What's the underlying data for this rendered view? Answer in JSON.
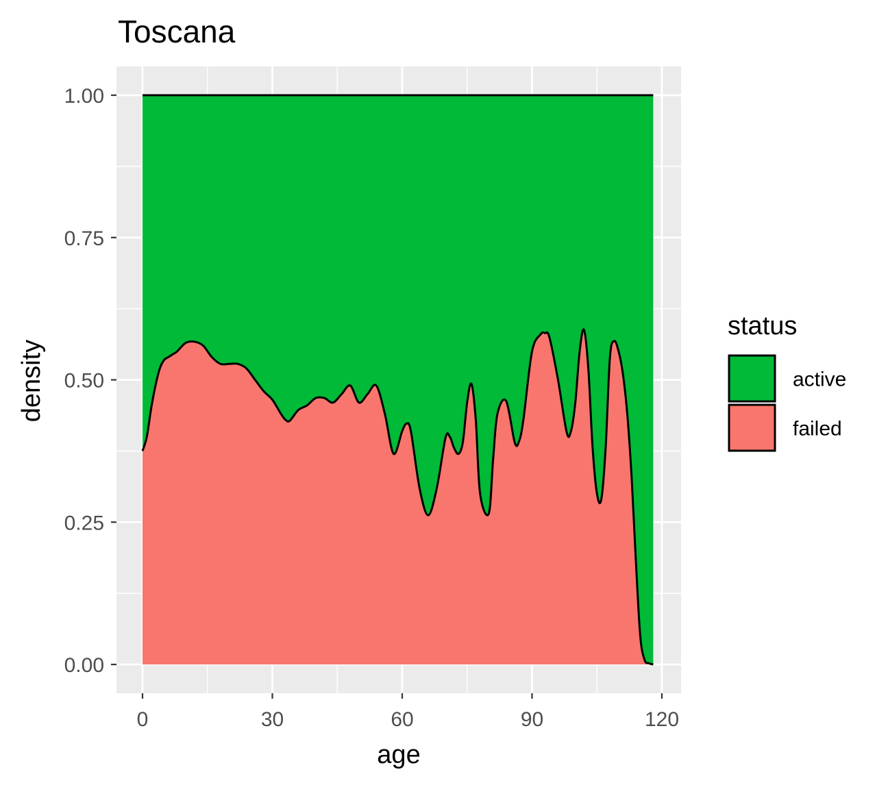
{
  "chart_data": {
    "type": "area",
    "title": "Toscana",
    "xlabel": "age",
    "ylabel": "density",
    "xlim": [
      -5,
      124
    ],
    "ylim": [
      -0.1,
      1.05
    ],
    "x_ticks": [
      0,
      30,
      60,
      90,
      120
    ],
    "x_tick_labels": [
      "0",
      "30",
      "60",
      "90",
      "120"
    ],
    "y_ticks": [
      0,
      0.25,
      0.5,
      0.75,
      1.0
    ],
    "y_tick_labels": [
      "0.00",
      "0.25",
      "0.50",
      "0.75",
      "1.00"
    ],
    "grid": true,
    "stacked": "fill",
    "legend": {
      "title": "status",
      "position": "right",
      "entries": [
        {
          "label": "active",
          "color": "#00BA38"
        },
        {
          "label": "failed",
          "color": "#F8766D"
        }
      ]
    },
    "series": [
      {
        "name": "failed",
        "color": "#F8766D",
        "x": [
          0,
          1,
          2,
          3,
          4,
          5,
          6,
          7,
          8,
          10,
          12,
          14,
          16,
          18,
          20,
          22,
          24,
          26,
          28,
          30,
          32,
          33,
          34,
          36,
          38,
          40,
          42,
          44,
          46,
          48,
          50,
          52,
          54,
          56,
          58,
          60,
          61,
          62,
          64,
          66,
          68,
          70,
          71,
          72,
          73,
          74,
          75,
          76,
          77,
          78,
          80,
          81,
          82,
          84,
          86,
          87,
          88,
          90,
          92,
          93,
          94,
          96,
          98,
          99,
          100,
          101,
          102,
          103,
          104,
          105,
          106,
          107,
          108,
          109,
          110,
          111,
          112,
          113,
          114,
          115,
          116,
          117,
          118
        ],
        "values": [
          0.375,
          0.4,
          0.45,
          0.49,
          0.52,
          0.535,
          0.54,
          0.545,
          0.55,
          0.565,
          0.567,
          0.56,
          0.54,
          0.528,
          0.528,
          0.528,
          0.52,
          0.5,
          0.48,
          0.465,
          0.44,
          0.43,
          0.428,
          0.447,
          0.455,
          0.468,
          0.468,
          0.46,
          0.475,
          0.49,
          0.46,
          0.475,
          0.49,
          0.44,
          0.37,
          0.41,
          0.423,
          0.41,
          0.31,
          0.262,
          0.31,
          0.398,
          0.4,
          0.38,
          0.37,
          0.39,
          0.46,
          0.493,
          0.43,
          0.3,
          0.265,
          0.36,
          0.44,
          0.463,
          0.39,
          0.392,
          0.43,
          0.55,
          0.58,
          0.582,
          0.575,
          0.5,
          0.408,
          0.41,
          0.46,
          0.55,
          0.588,
          0.52,
          0.38,
          0.3,
          0.29,
          0.38,
          0.54,
          0.568,
          0.55,
          0.51,
          0.44,
          0.33,
          0.18,
          0.05,
          0.008,
          0.002,
          0.0
        ]
      },
      {
        "name": "active",
        "color": "#00BA38"
      }
    ]
  }
}
